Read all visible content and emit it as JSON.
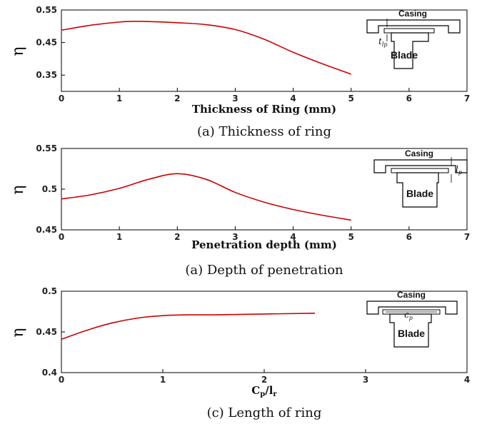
{
  "chart_data": [
    {
      "type": "line",
      "ylabel": "η",
      "xlabel": "Thickness of Ring (mm)",
      "caption": "(a)  Thickness  of  ring",
      "xlim": [
        0,
        7
      ],
      "ylim": [
        0.3,
        0.55
      ],
      "x_ticks": [
        "0",
        "1",
        "2",
        "3",
        "4",
        "5",
        "6",
        "7"
      ],
      "y_ticks": [
        "0.55",
        "0.45",
        "0.35"
      ],
      "series": [
        {
          "color": "#cc0000",
          "x": [
            0,
            0.5,
            1.0,
            1.3,
            1.6,
            2.0,
            2.5,
            3.0,
            3.5,
            4.0,
            4.5,
            5.0
          ],
          "y": [
            0.488,
            0.503,
            0.513,
            0.515,
            0.514,
            0.511,
            0.505,
            0.49,
            0.46,
            0.42,
            0.385,
            0.353
          ]
        }
      ],
      "inset": {
        "casing": "Casing",
        "blade": "Blade",
        "dim": "t",
        "dim_sub": "lp"
      }
    },
    {
      "type": "line",
      "ylabel": "η",
      "xlabel": "Penetration depth (mm)",
      "caption": "(a)  Depth  of  penetration",
      "xlim": [
        0,
        7
      ],
      "ylim": [
        0.45,
        0.55
      ],
      "x_ticks": [
        "0",
        "1",
        "2",
        "3",
        "4",
        "5",
        "6",
        "7"
      ],
      "y_ticks": [
        "0.55",
        "0.5",
        "0.45"
      ],
      "series": [
        {
          "color": "#cc0000",
          "x": [
            0,
            0.5,
            1.0,
            1.5,
            2.0,
            2.5,
            3.0,
            3.5,
            4.0,
            4.5,
            5.0
          ],
          "y": [
            0.488,
            0.493,
            0.501,
            0.512,
            0.519,
            0.512,
            0.496,
            0.484,
            0.475,
            0.468,
            0.462
          ]
        }
      ],
      "inset": {
        "casing": "Casing",
        "blade": "Blade",
        "dim": "l",
        "dim_sub": "p"
      }
    },
    {
      "type": "line",
      "ylabel": "η",
      "xlabel": "Cp/lr",
      "caption": "(c)  Length  of  ring",
      "xlim": [
        0,
        4
      ],
      "ylim": [
        0.4,
        0.5
      ],
      "x_ticks": [
        "0",
        "1",
        "2",
        "3",
        "4"
      ],
      "y_ticks": [
        "0.5",
        "0.45",
        "0.4"
      ],
      "series": [
        {
          "color": "#cc0000",
          "x": [
            0,
            0.25,
            0.5,
            0.75,
            1.0,
            1.25,
            1.5,
            2.0,
            2.5
          ],
          "y": [
            0.441,
            0.452,
            0.461,
            0.467,
            0.47,
            0.471,
            0.471,
            0.472,
            0.473
          ]
        }
      ],
      "inset": {
        "casing": "Casing",
        "blade": "Blade",
        "dim": "c",
        "dim_sub": "p"
      }
    }
  ]
}
